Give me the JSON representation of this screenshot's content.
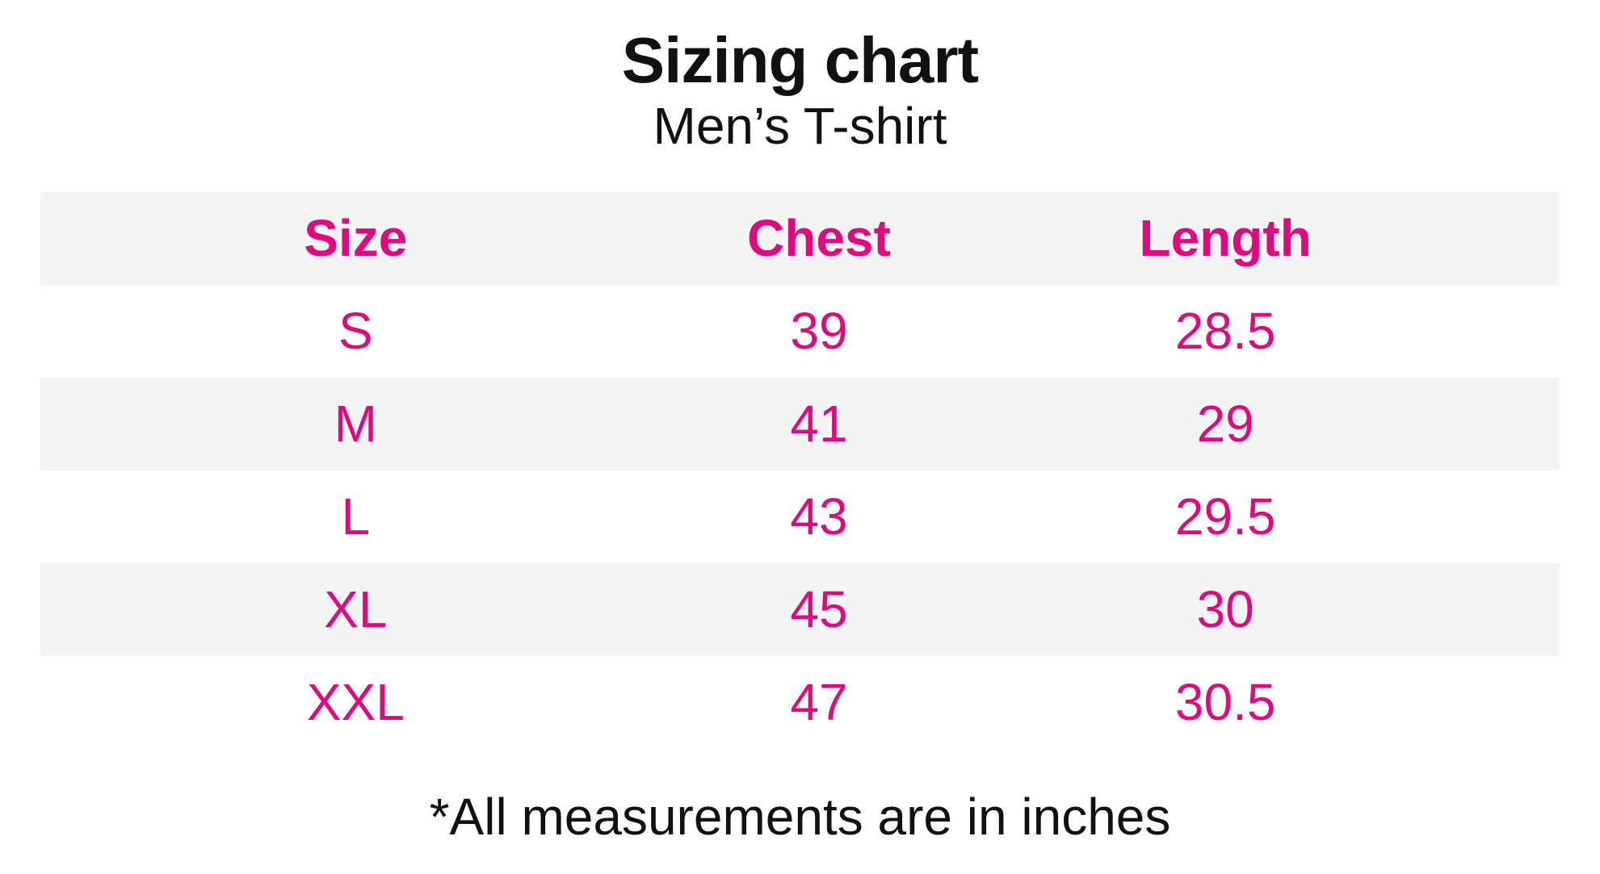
{
  "header": {
    "title": "Sizing chart",
    "subtitle": "Men’s T-shirt"
  },
  "table": {
    "columns": [
      "Size",
      "Chest",
      "Length"
    ],
    "rows": [
      {
        "size": "S",
        "chest": "39",
        "length": "28.5"
      },
      {
        "size": "M",
        "chest": "41",
        "length": "29"
      },
      {
        "size": "L",
        "chest": "43",
        "length": "29.5"
      },
      {
        "size": "XL",
        "chest": "45",
        "length": "30"
      },
      {
        "size": "XXL",
        "chest": "47",
        "length": "30.5"
      }
    ]
  },
  "footnote": "*All measurements are in inches",
  "colors": {
    "accent": "#E2087E",
    "alt_row_bg": "#F4F4F5",
    "text": "#111111"
  },
  "chart_data": {
    "type": "table",
    "title": "Sizing chart",
    "subtitle": "Men’s T-shirt",
    "columns": [
      "Size",
      "Chest",
      "Length"
    ],
    "rows": [
      [
        "S",
        39,
        28.5
      ],
      [
        "M",
        41,
        29
      ],
      [
        "L",
        43,
        29.5
      ],
      [
        "XL",
        45,
        30
      ],
      [
        "XXL",
        47,
        30.5
      ]
    ],
    "units": "inches",
    "footnote": "*All measurements are in inches",
    "layout": {
      "grid": false,
      "alternating_row_shading": true,
      "header_position": "top"
    }
  }
}
